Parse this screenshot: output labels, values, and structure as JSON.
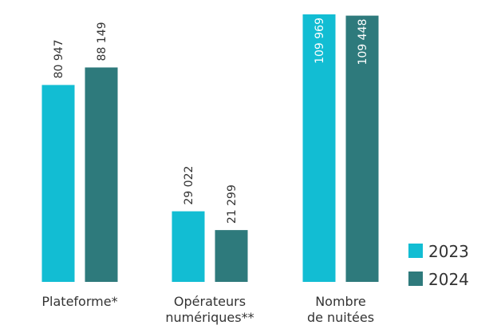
{
  "chart_data": {
    "type": "bar",
    "categories": [
      "Plateforme*",
      "Opérateurs\nnumériques**",
      "Nombre\nde nuitées"
    ],
    "series": [
      {
        "name": "2023",
        "color": "#12bdd3",
        "values": [
          80947,
          29022,
          109969
        ],
        "value_labels": [
          "80 947",
          "29 022",
          "109 969"
        ]
      },
      {
        "name": "2024",
        "color": "#2e7a7c",
        "values": [
          88149,
          21299,
          109448
        ],
        "value_labels": [
          "88 149",
          "21 299",
          "109 448"
        ]
      }
    ]
  }
}
